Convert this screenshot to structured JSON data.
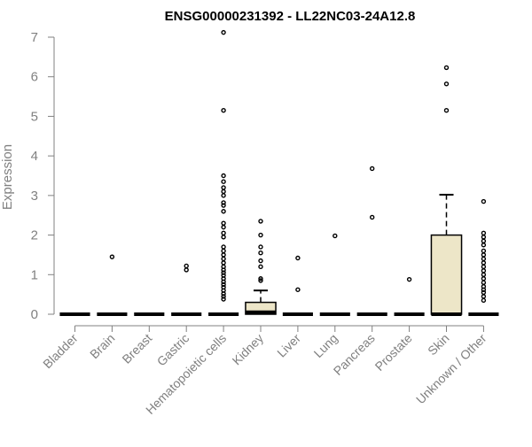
{
  "chart_data": {
    "type": "box",
    "title": "ENSG00000231392 - LL22NC03-24A12.8",
    "xlabel": "",
    "ylabel": "Expression",
    "ylim": [
      0,
      7.2
    ],
    "yticks": [
      0,
      1,
      2,
      3,
      4,
      5,
      6,
      7
    ],
    "grid": false,
    "colors": {
      "box_fill": "#ede6c8",
      "stroke": "#000000",
      "axis": "#808080"
    },
    "categories": [
      "Bladder",
      "Brain",
      "Breast",
      "Gastric",
      "Hematopoietic cells",
      "Kidney",
      "Liver",
      "Lung",
      "Pancreas",
      "Prostate",
      "Skin",
      "Unknown / Other"
    ],
    "boxes": [
      {
        "category": "Bladder",
        "q1": 0,
        "median": 0,
        "q3": 0,
        "whisker_low": 0,
        "whisker_high": 0,
        "outliers": []
      },
      {
        "category": "Brain",
        "q1": 0,
        "median": 0,
        "q3": 0,
        "whisker_low": 0,
        "whisker_high": 0,
        "outliers": [
          1.45
        ]
      },
      {
        "category": "Breast",
        "q1": 0,
        "median": 0,
        "q3": 0,
        "whisker_low": 0,
        "whisker_high": 0,
        "outliers": []
      },
      {
        "category": "Gastric",
        "q1": 0,
        "median": 0,
        "q3": 0,
        "whisker_low": 0,
        "whisker_high": 0,
        "outliers": [
          1.12,
          1.22
        ]
      },
      {
        "category": "Hematopoietic cells",
        "q1": 0,
        "median": 0,
        "q3": 0,
        "whisker_low": 0,
        "whisker_high": 0,
        "outliers": [
          0.38,
          0.45,
          0.52,
          0.6,
          0.68,
          0.75,
          0.82,
          0.9,
          0.98,
          1.05,
          1.12,
          1.2,
          1.3,
          1.4,
          1.5,
          1.6,
          1.7,
          1.95,
          2.05,
          2.2,
          2.3,
          2.6,
          2.75,
          2.82,
          3.0,
          3.1,
          3.2,
          3.35,
          3.5,
          5.15,
          7.12
        ]
      },
      {
        "category": "Kidney",
        "q1": 0,
        "median": 0.05,
        "q3": 0.3,
        "whisker_low": 0,
        "whisker_high": 0.6,
        "outliers": [
          0.85,
          0.9,
          1.2,
          1.35,
          1.55,
          1.7,
          2.0,
          2.35
        ]
      },
      {
        "category": "Liver",
        "q1": 0,
        "median": 0,
        "q3": 0,
        "whisker_low": 0,
        "whisker_high": 0,
        "outliers": [
          0.62,
          1.42
        ]
      },
      {
        "category": "Lung",
        "q1": 0,
        "median": 0,
        "q3": 0,
        "whisker_low": 0,
        "whisker_high": 0,
        "outliers": [
          1.98
        ]
      },
      {
        "category": "Pancreas",
        "q1": 0,
        "median": 0,
        "q3": 0,
        "whisker_low": 0,
        "whisker_high": 0,
        "outliers": [
          2.45,
          3.68
        ]
      },
      {
        "category": "Prostate",
        "q1": 0,
        "median": 0,
        "q3": 0,
        "whisker_low": 0,
        "whisker_high": 0,
        "outliers": [
          0.88
        ]
      },
      {
        "category": "Skin",
        "q1": 0,
        "median": 0,
        "q3": 2.0,
        "whisker_low": 0,
        "whisker_high": 3.02,
        "outliers": [
          5.15,
          5.82,
          6.23
        ]
      },
      {
        "category": "Unknown / Other",
        "q1": 0,
        "median": 0,
        "q3": 0,
        "whisker_low": 0,
        "whisker_high": 0,
        "outliers": [
          0.35,
          0.45,
          0.55,
          0.62,
          0.7,
          0.8,
          0.9,
          1.0,
          1.1,
          1.2,
          1.3,
          1.4,
          1.5,
          1.6,
          1.75,
          1.85,
          1.95,
          2.05,
          2.85
        ]
      }
    ]
  }
}
